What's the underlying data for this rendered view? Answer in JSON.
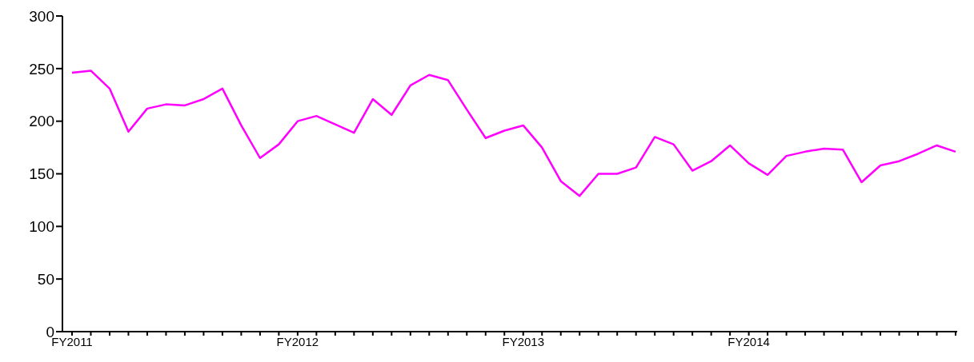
{
  "chart_data": {
    "type": "line",
    "categories": [
      "FY2011",
      null,
      null,
      null,
      null,
      null,
      null,
      null,
      null,
      null,
      null,
      null,
      "FY2012",
      null,
      null,
      null,
      null,
      null,
      null,
      null,
      null,
      null,
      null,
      null,
      "FY2013",
      null,
      null,
      null,
      null,
      null,
      null,
      null,
      null,
      null,
      null,
      null,
      "FY2014",
      null,
      null,
      null,
      null,
      null,
      null,
      null,
      null,
      null,
      null,
      null
    ],
    "series": [
      {
        "color": "#ff00ff",
        "values": [
          246,
          248,
          231,
          190,
          212,
          216,
          215,
          221,
          231,
          196,
          165,
          178,
          200,
          205,
          197,
          189,
          221,
          206,
          234,
          244,
          239,
          211,
          184,
          191,
          196,
          175,
          143,
          129,
          150,
          150,
          156,
          185,
          178,
          153,
          162,
          177,
          160,
          149,
          167,
          171,
          174,
          173,
          142,
          158,
          162,
          169,
          177,
          171
        ]
      }
    ],
    "ylim": [
      0,
      300
    ],
    "yticks": [
      0,
      50,
      100,
      150,
      200,
      250,
      300
    ],
    "grid": false,
    "marker": "none",
    "line_style": "solid"
  }
}
